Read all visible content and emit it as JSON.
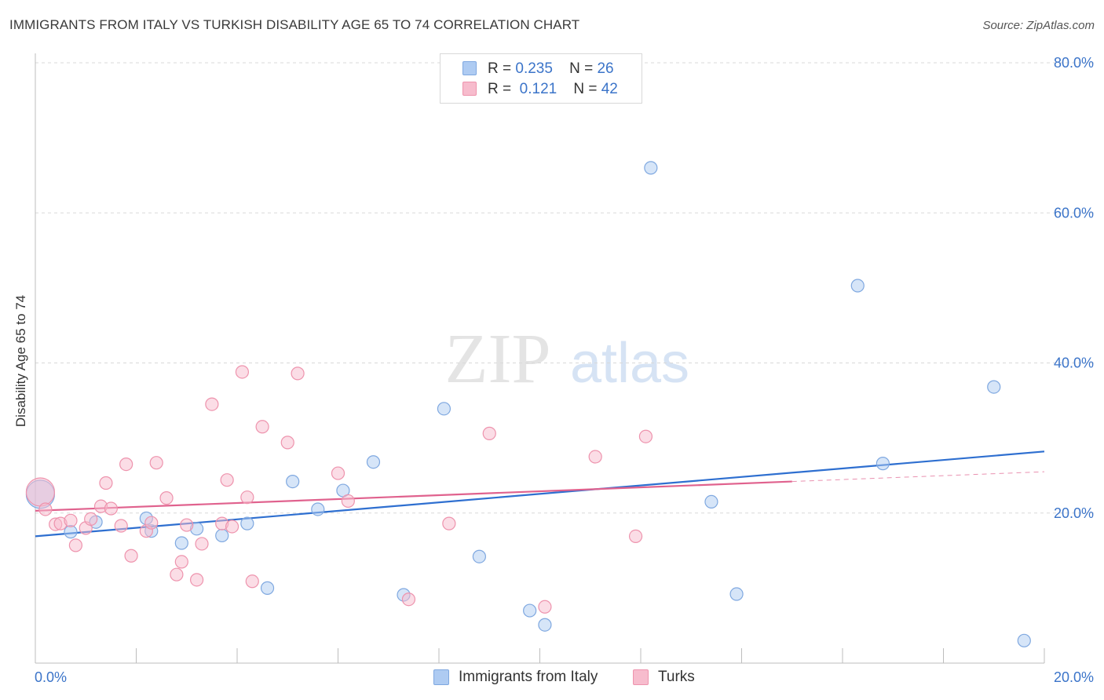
{
  "title": "IMMIGRANTS FROM ITALY VS TURKISH DISABILITY AGE 65 TO 74 CORRELATION CHART",
  "source": "Source: ZipAtlas.com",
  "watermark": {
    "zip": "ZIP",
    "atlas": "atlas"
  },
  "legend": {
    "r_label": "R =",
    "n_label": "N =",
    "italy": {
      "r": "0.235",
      "n": "26"
    },
    "turks": {
      "r": "0.121",
      "n": "42"
    }
  },
  "colors": {
    "italy_fill": "#aecbf2",
    "italy_stroke": "#7fa8e0",
    "italy_line": "#2e6fd0",
    "turks_fill": "#f7bccd",
    "turks_stroke": "#ee93ad",
    "turks_line": "#e0628e",
    "tick_label": "#3b74c9",
    "grid": "#d9d9d9"
  },
  "chart_data": {
    "type": "scatter",
    "title": "IMMIGRANTS FROM ITALY VS TURKISH DISABILITY AGE 65 TO 74 CORRELATION CHART",
    "xlabel": "",
    "ylabel": "Disability Age 65 to 74",
    "xlim": [
      0,
      20
    ],
    "ylim": [
      0,
      80
    ],
    "y_ticks": [
      20,
      40,
      60,
      80
    ],
    "y_tick_labels": [
      "20.0%",
      "40.0%",
      "60.0%",
      "80.0%"
    ],
    "x_tick_labels": [
      "0.0%",
      "20.0%"
    ],
    "legend_position": "top-center",
    "series": [
      {
        "name": "Immigrants from Italy",
        "r": 0.235,
        "n": 26,
        "trend": {
          "x": [
            0,
            20
          ],
          "y": [
            16.9,
            28.2
          ],
          "solid_until": 20
        },
        "points": [
          {
            "x": 0.1,
            "y": 22.5,
            "big": true
          },
          {
            "x": 0.7,
            "y": 17.5
          },
          {
            "x": 1.2,
            "y": 18.8
          },
          {
            "x": 2.2,
            "y": 19.3
          },
          {
            "x": 2.3,
            "y": 17.6
          },
          {
            "x": 2.9,
            "y": 16.0
          },
          {
            "x": 3.2,
            "y": 17.9
          },
          {
            "x": 3.7,
            "y": 17.0
          },
          {
            "x": 4.2,
            "y": 18.6
          },
          {
            "x": 4.6,
            "y": 10.0
          },
          {
            "x": 5.1,
            "y": 24.2
          },
          {
            "x": 5.6,
            "y": 20.5
          },
          {
            "x": 6.1,
            "y": 23.0
          },
          {
            "x": 6.7,
            "y": 26.8
          },
          {
            "x": 8.1,
            "y": 33.9
          },
          {
            "x": 8.8,
            "y": 14.2
          },
          {
            "x": 7.3,
            "y": 9.1
          },
          {
            "x": 9.8,
            "y": 7.0
          },
          {
            "x": 10.1,
            "y": 5.1
          },
          {
            "x": 12.2,
            "y": 66.0
          },
          {
            "x": 13.4,
            "y": 21.5
          },
          {
            "x": 13.9,
            "y": 9.2
          },
          {
            "x": 16.3,
            "y": 50.3
          },
          {
            "x": 16.8,
            "y": 26.6
          },
          {
            "x": 19.0,
            "y": 36.8
          },
          {
            "x": 19.6,
            "y": 3.0
          }
        ]
      },
      {
        "name": "Turks",
        "r": 0.121,
        "n": 42,
        "trend": {
          "x": [
            0,
            20
          ],
          "y": [
            20.3,
            25.5
          ],
          "solid_until": 15
        },
        "points": [
          {
            "x": 0.1,
            "y": 22.8,
            "big": true
          },
          {
            "x": 0.2,
            "y": 20.5
          },
          {
            "x": 0.4,
            "y": 18.5
          },
          {
            "x": 0.5,
            "y": 18.6
          },
          {
            "x": 0.7,
            "y": 19.0
          },
          {
            "x": 0.8,
            "y": 15.7
          },
          {
            "x": 1.0,
            "y": 18.0
          },
          {
            "x": 1.1,
            "y": 19.2
          },
          {
            "x": 1.3,
            "y": 20.9
          },
          {
            "x": 1.4,
            "y": 24.0
          },
          {
            "x": 1.5,
            "y": 20.6
          },
          {
            "x": 1.7,
            "y": 18.3
          },
          {
            "x": 1.8,
            "y": 26.5
          },
          {
            "x": 1.9,
            "y": 14.3
          },
          {
            "x": 2.2,
            "y": 17.6
          },
          {
            "x": 2.3,
            "y": 18.7
          },
          {
            "x": 2.4,
            "y": 26.7
          },
          {
            "x": 2.6,
            "y": 22.0
          },
          {
            "x": 2.8,
            "y": 11.8
          },
          {
            "x": 2.9,
            "y": 13.5
          },
          {
            "x": 3.0,
            "y": 18.4
          },
          {
            "x": 3.2,
            "y": 11.1
          },
          {
            "x": 3.3,
            "y": 15.9
          },
          {
            "x": 3.5,
            "y": 34.5
          },
          {
            "x": 3.7,
            "y": 18.6
          },
          {
            "x": 3.8,
            "y": 24.4
          },
          {
            "x": 3.9,
            "y": 18.2
          },
          {
            "x": 4.1,
            "y": 38.8
          },
          {
            "x": 4.2,
            "y": 22.1
          },
          {
            "x": 4.3,
            "y": 10.9
          },
          {
            "x": 4.5,
            "y": 31.5
          },
          {
            "x": 5.0,
            "y": 29.4
          },
          {
            "x": 5.2,
            "y": 38.6
          },
          {
            "x": 6.0,
            "y": 25.3
          },
          {
            "x": 6.2,
            "y": 21.6
          },
          {
            "x": 7.4,
            "y": 8.5
          },
          {
            "x": 8.2,
            "y": 18.6
          },
          {
            "x": 9.0,
            "y": 30.6
          },
          {
            "x": 10.1,
            "y": 7.5
          },
          {
            "x": 11.1,
            "y": 27.5
          },
          {
            "x": 11.9,
            "y": 16.9
          },
          {
            "x": 12.1,
            "y": 30.2
          }
        ]
      }
    ]
  }
}
